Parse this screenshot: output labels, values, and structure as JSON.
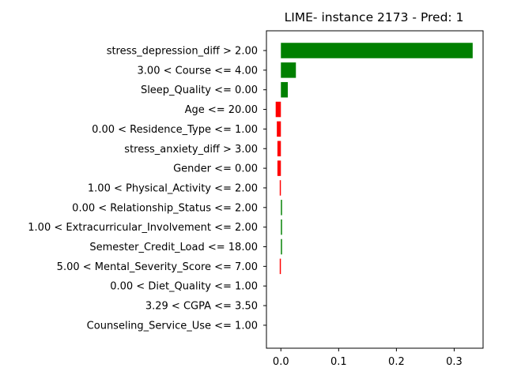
{
  "chart_data": {
    "type": "bar",
    "orientation": "horizontal",
    "title": "LIME- instance 2173 - Pred: 1",
    "xlabel": "",
    "ylabel": "",
    "xlim": [
      -0.025,
      0.35
    ],
    "xticks": [
      0.0,
      0.1,
      0.2,
      0.3
    ],
    "xtick_labels": [
      "0.0",
      "0.1",
      "0.2",
      "0.3"
    ],
    "grid": false,
    "positive_color": "#008000",
    "negative_color": "#ff0000",
    "categories": [
      "stress_depression_diff > 2.00",
      "3.00 < Course <= 4.00",
      "Sleep_Quality <= 0.00",
      "Age <= 20.00",
      "0.00 < Residence_Type <= 1.00",
      "stress_anxiety_diff > 3.00",
      "Gender <= 0.00",
      "1.00 < Physical_Activity <= 2.00",
      "0.00 < Relationship_Status <= 2.00",
      "1.00 < Extracurricular_Involvement <= 2.00",
      "Semester_Credit_Load <= 18.00",
      "5.00 < Mental_Severity_Score <= 7.00",
      "0.00 < Diet_Quality <= 1.00",
      "3.29 < CGPA <= 3.50",
      "Counseling_Service_Use <= 1.00"
    ],
    "values": [
      0.332,
      0.026,
      0.012,
      -0.009,
      -0.007,
      -0.006,
      -0.006,
      -0.002,
      0.002,
      0.002,
      0.002,
      -0.002,
      0.0,
      0.0,
      0.0
    ]
  }
}
